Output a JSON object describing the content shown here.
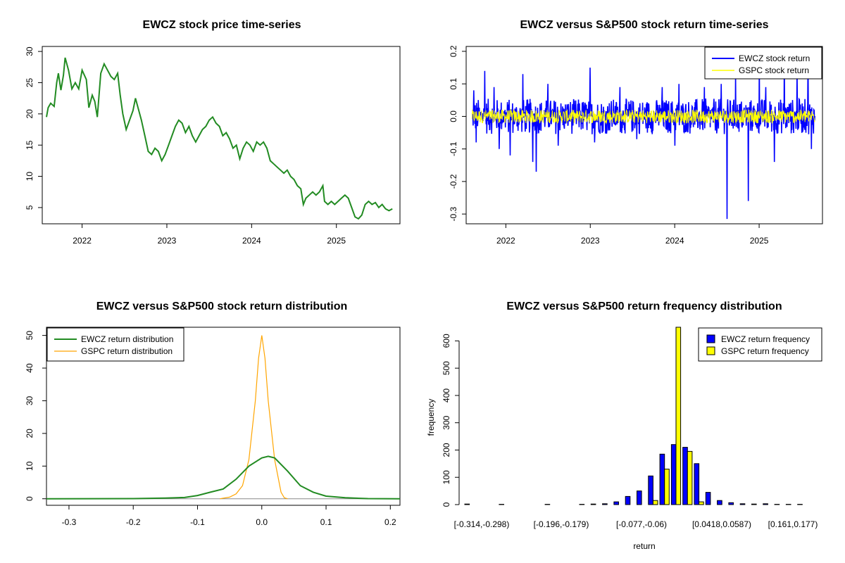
{
  "colors": {
    "price": "#228b22",
    "ewcz_ret": "#0000ff",
    "gspc_ret": "#ffff00",
    "ewcz_dens": "#228b22",
    "gspc_dens": "#ffa500",
    "ewcz_bar": "#0000ff",
    "gspc_bar": "#ffff00",
    "axis": "#000000"
  },
  "chart_data": [
    {
      "type": "line",
      "title": "EWCZ stock price time-series",
      "xlabel": "",
      "ylabel": "",
      "x_ticks": [
        "2022",
        "2023",
        "2024",
        "2025"
      ],
      "y_ticks": [
        "5",
        "10",
        "15",
        "20",
        "25",
        "30"
      ],
      "xlim": [
        2021.53,
        2025.75
      ],
      "ylim": [
        2.4,
        30.8
      ],
      "series": [
        {
          "values": [
            [
              2021.58,
              19.5
            ],
            [
              2021.6,
              21.0
            ],
            [
              2021.63,
              21.7
            ],
            [
              2021.67,
              21.2
            ],
            [
              2021.7,
              25.0
            ],
            [
              2021.72,
              26.5
            ],
            [
              2021.75,
              23.8
            ],
            [
              2021.78,
              26.2
            ],
            [
              2021.8,
              29.0
            ],
            [
              2021.84,
              27.0
            ],
            [
              2021.88,
              24.0
            ],
            [
              2021.92,
              25.0
            ],
            [
              2021.96,
              24.0
            ],
            [
              2022.0,
              27.0
            ],
            [
              2022.05,
              25.5
            ],
            [
              2022.08,
              21.0
            ],
            [
              2022.12,
              23.0
            ],
            [
              2022.15,
              22.0
            ],
            [
              2022.18,
              19.5
            ],
            [
              2022.22,
              26.5
            ],
            [
              2022.26,
              28.0
            ],
            [
              2022.3,
              27.0
            ],
            [
              2022.34,
              26.0
            ],
            [
              2022.38,
              25.5
            ],
            [
              2022.42,
              26.5
            ],
            [
              2022.45,
              23.0
            ],
            [
              2022.48,
              20.0
            ],
            [
              2022.52,
              17.5
            ],
            [
              2022.56,
              19.0
            ],
            [
              2022.6,
              20.5
            ],
            [
              2022.63,
              22.5
            ],
            [
              2022.66,
              21.0
            ],
            [
              2022.7,
              19.0
            ],
            [
              2022.74,
              16.5
            ],
            [
              2022.78,
              14.0
            ],
            [
              2022.82,
              13.5
            ],
            [
              2022.86,
              14.5
            ],
            [
              2022.9,
              14.0
            ],
            [
              2022.94,
              12.5
            ],
            [
              2022.98,
              13.5
            ],
            [
              2023.02,
              15.0
            ],
            [
              2023.06,
              16.5
            ],
            [
              2023.1,
              18.0
            ],
            [
              2023.14,
              19.0
            ],
            [
              2023.18,
              18.5
            ],
            [
              2023.22,
              17.0
            ],
            [
              2023.26,
              18.0
            ],
            [
              2023.3,
              16.5
            ],
            [
              2023.34,
              15.5
            ],
            [
              2023.38,
              16.5
            ],
            [
              2023.42,
              17.5
            ],
            [
              2023.46,
              18.0
            ],
            [
              2023.5,
              19.0
            ],
            [
              2023.54,
              19.5
            ],
            [
              2023.58,
              18.5
            ],
            [
              2023.62,
              18.0
            ],
            [
              2023.66,
              16.5
            ],
            [
              2023.7,
              17.0
            ],
            [
              2023.74,
              16.0
            ],
            [
              2023.78,
              14.5
            ],
            [
              2023.82,
              15.0
            ],
            [
              2023.86,
              12.8
            ],
            [
              2023.9,
              14.5
            ],
            [
              2023.94,
              15.5
            ],
            [
              2023.98,
              15.0
            ],
            [
              2024.02,
              14.0
            ],
            [
              2024.06,
              15.5
            ],
            [
              2024.1,
              15.0
            ],
            [
              2024.14,
              15.5
            ],
            [
              2024.18,
              14.5
            ],
            [
              2024.22,
              12.5
            ],
            [
              2024.26,
              12.0
            ],
            [
              2024.3,
              11.5
            ],
            [
              2024.34,
              11.0
            ],
            [
              2024.38,
              10.5
            ],
            [
              2024.42,
              11.0
            ],
            [
              2024.46,
              10.0
            ],
            [
              2024.5,
              9.5
            ],
            [
              2024.54,
              8.5
            ],
            [
              2024.58,
              8.0
            ],
            [
              2024.61,
              5.5
            ],
            [
              2024.64,
              6.5
            ],
            [
              2024.68,
              7.0
            ],
            [
              2024.72,
              7.5
            ],
            [
              2024.76,
              7.0
            ],
            [
              2024.8,
              7.5
            ],
            [
              2024.84,
              8.5
            ],
            [
              2024.86,
              6.0
            ],
            [
              2024.9,
              5.5
            ],
            [
              2024.94,
              6.0
            ],
            [
              2024.98,
              5.5
            ],
            [
              2025.02,
              6.0
            ],
            [
              2025.06,
              6.5
            ],
            [
              2025.1,
              7.0
            ],
            [
              2025.14,
              6.5
            ],
            [
              2025.18,
              5.0
            ],
            [
              2025.22,
              3.5
            ],
            [
              2025.26,
              3.2
            ],
            [
              2025.3,
              3.8
            ],
            [
              2025.34,
              5.5
            ],
            [
              2025.38,
              6.0
            ],
            [
              2025.42,
              5.5
            ],
            [
              2025.46,
              5.8
            ],
            [
              2025.5,
              5.0
            ],
            [
              2025.54,
              5.5
            ],
            [
              2025.58,
              4.8
            ],
            [
              2025.62,
              4.5
            ],
            [
              2025.66,
              4.8
            ]
          ]
        }
      ]
    },
    {
      "type": "line",
      "title": "EWCZ versus S&P500 stock return time-series",
      "xlabel": "",
      "ylabel": "",
      "x_ticks": [
        "2022",
        "2023",
        "2024",
        "2025"
      ],
      "y_ticks": [
        "-0.3",
        "-0.2",
        "-0.1",
        "0.0",
        "0.1",
        "0.2"
      ],
      "xlim": [
        2021.53,
        2025.75
      ],
      "ylim": [
        -0.33,
        0.215
      ],
      "legend": {
        "position": "top-right",
        "entries": [
          "EWCZ stock return",
          "GSPC stock return"
        ]
      },
      "series": [
        {
          "name": "EWCZ stock return",
          "spikes": [
            [
              2021.62,
              0.08
            ],
            [
              2021.65,
              -0.08
            ],
            [
              2021.75,
              0.14
            ],
            [
              2021.86,
              0.09
            ],
            [
              2021.92,
              -0.1
            ],
            [
              2022.05,
              -0.12
            ],
            [
              2022.2,
              0.13
            ],
            [
              2022.32,
              -0.14
            ],
            [
              2022.36,
              -0.17
            ],
            [
              2022.5,
              0.1
            ],
            [
              2022.62,
              -0.09
            ],
            [
              2023.0,
              0.15
            ],
            [
              2023.05,
              -0.08
            ],
            [
              2023.35,
              0.09
            ],
            [
              2023.55,
              -0.07
            ],
            [
              2023.85,
              0.09
            ],
            [
              2024.0,
              -0.09
            ],
            [
              2024.05,
              0.1
            ],
            [
              2024.35,
              0.09
            ],
            [
              2024.55,
              0.1
            ],
            [
              2024.62,
              -0.315
            ],
            [
              2024.72,
              0.13
            ],
            [
              2024.87,
              -0.26
            ],
            [
              2025.0,
              0.18
            ],
            [
              2025.08,
              0.09
            ],
            [
              2025.18,
              -0.14
            ],
            [
              2025.3,
              0.19
            ],
            [
              2025.45,
              0.14
            ],
            [
              2025.58,
              0.19
            ],
            [
              2025.62,
              -0.1
            ]
          ]
        },
        {
          "name": "GSPC stock return",
          "amplitude": 0.03
        }
      ]
    },
    {
      "type": "line",
      "title": "EWCZ versus S&P500 stock return distribution",
      "xlabel": "",
      "ylabel": "",
      "x_ticks": [
        "-0.3",
        "-0.2",
        "-0.1",
        "0.0",
        "0.1",
        "0.2"
      ],
      "y_ticks": [
        "0",
        "10",
        "20",
        "30",
        "40",
        "50"
      ],
      "xlim": [
        -0.335,
        0.215
      ],
      "ylim": [
        -2,
        52.5
      ],
      "legend": {
        "position": "top-left",
        "entries": [
          "EWCZ return distribution",
          "GSPC return distribution"
        ]
      },
      "series": [
        {
          "name": "EWCZ return distribution",
          "values": [
            [
              -0.335,
              0
            ],
            [
              -0.2,
              0.05
            ],
            [
              -0.15,
              0.2
            ],
            [
              -0.12,
              0.4
            ],
            [
              -0.1,
              1.0
            ],
            [
              -0.08,
              2.0
            ],
            [
              -0.06,
              3.0
            ],
            [
              -0.04,
              6.0
            ],
            [
              -0.02,
              10.0
            ],
            [
              0.0,
              12.5
            ],
            [
              0.01,
              13.0
            ],
            [
              0.02,
              12.5
            ],
            [
              0.04,
              8.5
            ],
            [
              0.06,
              4.0
            ],
            [
              0.08,
              2.0
            ],
            [
              0.1,
              0.8
            ],
            [
              0.13,
              0.3
            ],
            [
              0.165,
              0.05
            ],
            [
              0.215,
              0
            ]
          ]
        },
        {
          "name": "GSPC return distribution",
          "values": [
            [
              -0.065,
              0
            ],
            [
              -0.05,
              0.5
            ],
            [
              -0.04,
              1.5
            ],
            [
              -0.03,
              4.0
            ],
            [
              -0.02,
              12.0
            ],
            [
              -0.01,
              30.0
            ],
            [
              -0.005,
              43.0
            ],
            [
              0.0,
              50.0
            ],
            [
              0.005,
              43.0
            ],
            [
              0.01,
              30.0
            ],
            [
              0.02,
              12.0
            ],
            [
              0.03,
              2.0
            ],
            [
              0.035,
              0.3
            ],
            [
              0.04,
              0
            ]
          ]
        }
      ]
    },
    {
      "type": "bar",
      "title": "EWCZ versus S&P500 return frequency distribution",
      "xlabel": "return",
      "ylabel": "frequency",
      "x_tick_labels": [
        "[-0.314,-0.298)",
        "[-0.196,-0.179)",
        "[-0.077,-0.06)",
        "[0.0418,0.0587)",
        "[0.161,0.177)"
      ],
      "y_ticks": [
        "0",
        "100",
        "200",
        "300",
        "400",
        "500",
        "600"
      ],
      "ylim": [
        0,
        650
      ],
      "legend": {
        "position": "top-right",
        "entries": [
          "EWCZ return frequency",
          "GSPC return frequency"
        ]
      },
      "series": [
        {
          "name": "EWCZ return frequency",
          "values": [
            2,
            0,
            0,
            1,
            0,
            0,
            0,
            1,
            0,
            0,
            1,
            2,
            3,
            10,
            30,
            50,
            105,
            185,
            220,
            210,
            150,
            45,
            15,
            7,
            3,
            2,
            3,
            1,
            1,
            1
          ]
        },
        {
          "name": "GSPC return frequency",
          "values": [
            0,
            0,
            0,
            0,
            0,
            0,
            0,
            0,
            0,
            0,
            0,
            0,
            0,
            0,
            0,
            0,
            15,
            130,
            650,
            195,
            10,
            0,
            0,
            0,
            0,
            0,
            0,
            0,
            0,
            0
          ]
        }
      ]
    }
  ]
}
